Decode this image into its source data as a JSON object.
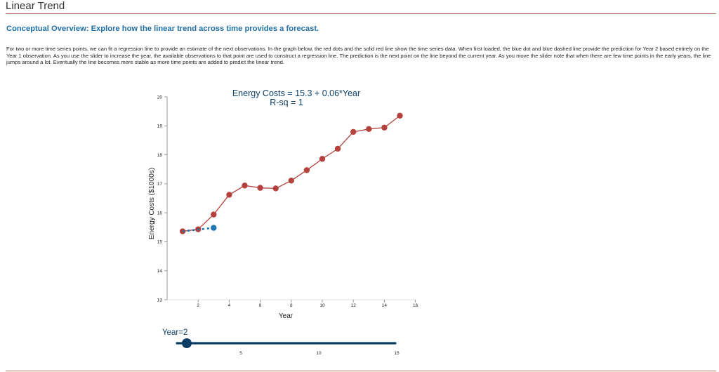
{
  "page": {
    "title": "Linear Trend",
    "overview_heading": "Conceptual Overview: Explore how the linear trend across time provides a forecast.",
    "description": "For two or more time series points, we can fit a regression line to provide an estimate of the next observations. In the graph below, the red dots and the solid red line show the time series data. When first loaded, the blue dot and blue dashed line provide the prediction for Year 2 based entirely on the Year 1 observation. As you use the slider to increase the year, the available observations to that point are used to construct a regression line. The prediction is the next point on the line beyond the current year. As you move the slider note that when there are few time points in the early years, the line jumps around a lot. Eventually the line becomes more stable as more time points are added to predict the linear trend."
  },
  "colors": {
    "series": "#b5413c",
    "prediction": "#1f77b4",
    "equation": "#0d3e66",
    "slider": "#0d3e66",
    "rule": "#c0705e",
    "heading": "#1f6fa6"
  },
  "slider": {
    "label": "Year=2",
    "value": 2,
    "min": 1,
    "max": 15,
    "ticks": [
      "5",
      "10",
      "15"
    ]
  },
  "chart_data": {
    "type": "line",
    "title": "Energy Costs = 15.3 + 0.06*Year",
    "subtitle": "R-sq = 1",
    "xlabel": "Year",
    "ylabel": "Energy Costs ($1000s)",
    "xlim": [
      0,
      16
    ],
    "ylim": [
      13,
      20
    ],
    "x_ticks": [
      "2",
      "4",
      "6",
      "8",
      "10",
      "12",
      "14",
      "16"
    ],
    "y_ticks": [
      "13",
      "14",
      "15",
      "16",
      "17",
      "18",
      "19",
      "20"
    ],
    "grid": false,
    "series": [
      {
        "name": "Energy Costs",
        "style": "solid-with-markers",
        "x": [
          1,
          2,
          3,
          4,
          5,
          6,
          7,
          8,
          9,
          10,
          11,
          12,
          13,
          14,
          15
        ],
        "values": [
          15.36,
          15.43,
          15.94,
          16.62,
          16.94,
          16.86,
          16.84,
          17.11,
          17.47,
          17.86,
          18.21,
          18.79,
          18.89,
          18.94,
          19.35
        ]
      },
      {
        "name": "Regression prediction",
        "style": "dashed-with-endpoint",
        "x": [
          1,
          2,
          3
        ],
        "values": [
          15.36,
          15.42,
          15.48
        ]
      }
    ]
  }
}
